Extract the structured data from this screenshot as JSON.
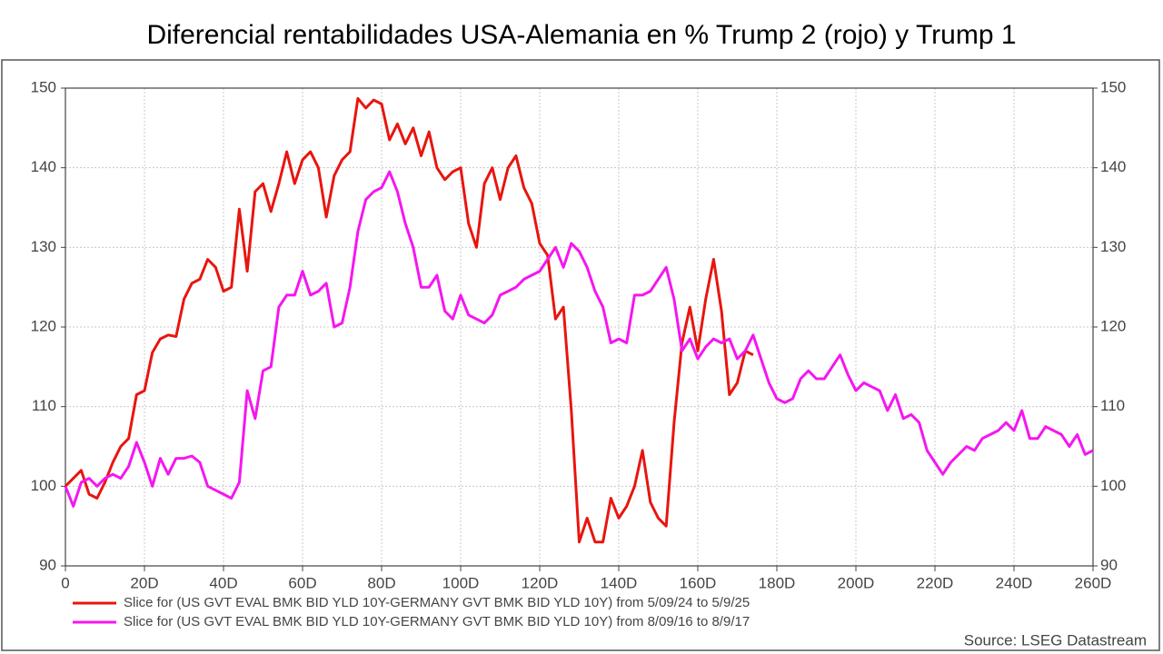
{
  "chart_data": {
    "type": "line",
    "title": "Diferencial rentabilidades USA-Alemania en % Trump 2 (rojo) y Trump 1",
    "source": "Source: LSEG Datastream",
    "x": [
      0,
      2,
      4,
      6,
      8,
      10,
      12,
      14,
      16,
      18,
      20,
      22,
      24,
      26,
      28,
      30,
      32,
      34,
      36,
      38,
      40,
      42,
      44,
      46,
      48,
      50,
      52,
      54,
      56,
      58,
      60,
      62,
      64,
      66,
      68,
      70,
      72,
      74,
      76,
      78,
      80,
      82,
      84,
      86,
      88,
      90,
      92,
      94,
      96,
      98,
      100,
      102,
      104,
      106,
      108,
      110,
      112,
      114,
      116,
      118,
      120,
      122,
      124,
      126,
      128,
      130,
      132,
      134,
      136,
      138,
      140,
      142,
      144,
      146,
      148,
      150,
      152,
      154,
      156,
      158,
      160,
      162,
      164,
      166,
      168,
      170,
      172,
      174,
      176,
      178,
      180,
      182,
      184,
      186,
      188,
      190,
      192,
      194,
      196,
      198,
      200,
      202,
      204,
      206,
      208,
      210,
      212,
      214,
      216,
      218,
      220,
      222,
      224,
      226,
      228,
      230,
      232,
      234,
      236,
      238,
      240,
      242,
      244,
      246,
      248,
      250,
      252,
      254,
      256,
      258,
      260
    ],
    "series": [
      {
        "name": "Slice for (US GVT EVAL BMK BID YLD 10Y-GERMANY GVT BMK BID YLD 10Y) from 5/09/24 to 5/9/25",
        "color": "#e8150f",
        "values": [
          100,
          101,
          102,
          99,
          98.5,
          100.5,
          103,
          105,
          106,
          111.5,
          112,
          116.8,
          118.5,
          119,
          118.8,
          123.5,
          125.5,
          126,
          128.5,
          127.5,
          124.5,
          125,
          134.8,
          127,
          137,
          138,
          134.5,
          138,
          142,
          138,
          141,
          142,
          140,
          133.8,
          139,
          141,
          142,
          148.7,
          147.5,
          148.5,
          148,
          143.5,
          145.5,
          143,
          145,
          141.5,
          144.5,
          140,
          138.5,
          139.5,
          140,
          133,
          130,
          138,
          140,
          136,
          140,
          141.5,
          137.5,
          135.5,
          130.5,
          129,
          121,
          122.5,
          109.5,
          93,
          96,
          93,
          93,
          98.5,
          96,
          97.5,
          100,
          104.5,
          98,
          96,
          95,
          108,
          118,
          122.5,
          117,
          123.5,
          128.5,
          122,
          111.5,
          113,
          117,
          116.5,
          null,
          null,
          null,
          null,
          null,
          null,
          null,
          null,
          null,
          null,
          null,
          null,
          null,
          null,
          null,
          null,
          null,
          null,
          null,
          null,
          null,
          null,
          null,
          null,
          null,
          null,
          null,
          null,
          null,
          null,
          null,
          null,
          null,
          null,
          null,
          null,
          null,
          null,
          null,
          null,
          null,
          null,
          null
        ]
      },
      {
        "name": "Slice for (US GVT EVAL BMK BID YLD 10Y-GERMANY GVT BMK BID YLD 10Y) from 8/09/16 to 8/9/17",
        "color": "#f516f0",
        "values": [
          100,
          97.5,
          100.5,
          101,
          100,
          101,
          101.5,
          101,
          102.5,
          105.5,
          103,
          100,
          103.5,
          101.5,
          103.5,
          103.5,
          103.8,
          103,
          100,
          99.5,
          99,
          98.5,
          100.5,
          112,
          108.5,
          114.5,
          115,
          122.5,
          124,
          124,
          127,
          124,
          124.5,
          125.5,
          120,
          120.5,
          125,
          132,
          136,
          137,
          137.5,
          139.5,
          137,
          133,
          130,
          125,
          125,
          126.5,
          122,
          121,
          124,
          121.5,
          121,
          120.5,
          121.5,
          124,
          124.5,
          125,
          126,
          126.5,
          127,
          128.5,
          130,
          127.5,
          130.5,
          129.5,
          127.5,
          124.5,
          122.5,
          118,
          118.5,
          118,
          124,
          124,
          124.5,
          126,
          127.5,
          123.5,
          117,
          118.5,
          116,
          117.5,
          118.5,
          118,
          118.5,
          116,
          117,
          119,
          116,
          113,
          111,
          110.5,
          111,
          113.5,
          114.5,
          113.5,
          113.5,
          115,
          116.5,
          114,
          112,
          113,
          112.5,
          112,
          109.5,
          111.5,
          108.5,
          109,
          108,
          104.5,
          103,
          101.5,
          103,
          104,
          105,
          104.5,
          106,
          106.5,
          107,
          108,
          107,
          109.5,
          106,
          106,
          107.5,
          107,
          106.5,
          105,
          106.5,
          104,
          104.5
        ]
      }
    ],
    "xlim": [
      0,
      260
    ],
    "xticks": [
      0,
      {
        "value": 20,
        "label": "20D"
      },
      {
        "value": 40,
        "label": "40D"
      },
      {
        "value": 60,
        "label": "60D"
      },
      {
        "value": 80,
        "label": "80D"
      },
      {
        "value": 100,
        "label": "100D"
      },
      {
        "value": 120,
        "label": "120D"
      },
      {
        "value": 140,
        "label": "140D"
      },
      {
        "value": 160,
        "label": "160D"
      },
      {
        "value": 180,
        "label": "180D"
      },
      {
        "value": 200,
        "label": "200D"
      },
      {
        "value": 220,
        "label": "220D"
      },
      {
        "value": 240,
        "label": "240D"
      },
      {
        "value": 260,
        "label": "260D"
      }
    ],
    "ylim": [
      90,
      150
    ],
    "yticks": [
      90,
      100,
      110,
      120,
      130,
      140,
      150
    ],
    "y2lim": [
      90,
      150
    ],
    "y2ticks": [
      90,
      100,
      110,
      120,
      130,
      140,
      150
    ],
    "grid": true,
    "legend": "bottom"
  }
}
